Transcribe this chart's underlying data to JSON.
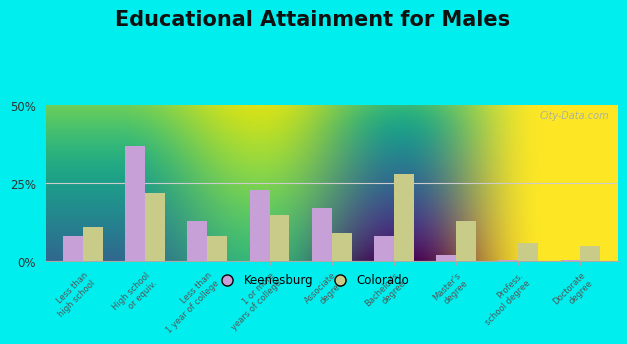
{
  "title": "Educational Attainment for Males",
  "categories": [
    "Less than\nhigh school",
    "High school\nor equiv.",
    "Less than\n1 year of college",
    "1 or more\nyears of college",
    "Associate\ndegree",
    "Bachelor's\ndegree",
    "Master's\ndegree",
    "Profess.\nschool degree",
    "Doctorate\ndegree"
  ],
  "keenesburg": [
    8.0,
    37.0,
    13.0,
    23.0,
    17.0,
    8.0,
    2.0,
    0.3,
    0.3
  ],
  "colorado": [
    11.0,
    22.0,
    8.0,
    15.0,
    9.0,
    28.0,
    13.0,
    6.0,
    5.0
  ],
  "keenesburg_color": "#c8a0d8",
  "colorado_color": "#c8cc88",
  "background_outer": "#00eeee",
  "ylim": [
    0,
    50
  ],
  "yticks": [
    0,
    25,
    50
  ],
  "ytick_labels": [
    "0%",
    "25%",
    "50%"
  ],
  "title_fontsize": 15,
  "watermark": "City-Data.com"
}
